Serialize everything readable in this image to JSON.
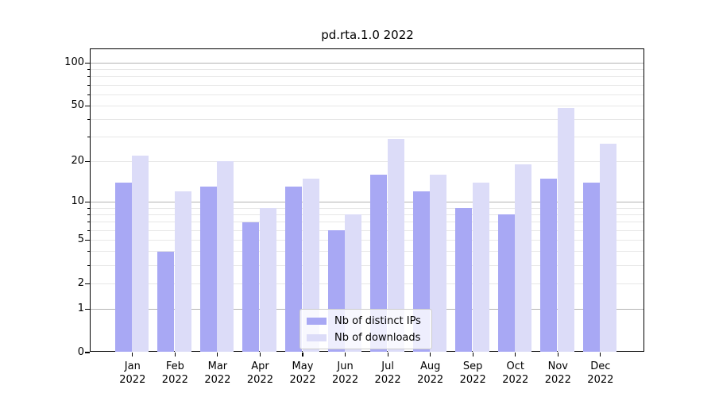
{
  "chart_data": {
    "type": "bar",
    "title": "pd.rta.1.0 2022",
    "year_label": "2022",
    "categories": [
      "Jan",
      "Feb",
      "Mar",
      "Apr",
      "May",
      "Jun",
      "Jul",
      "Aug",
      "Sep",
      "Oct",
      "Nov",
      "Dec"
    ],
    "series": [
      {
        "name": "Nb of distinct IPs",
        "color": "#a8a8f4",
        "values": [
          14,
          4,
          13,
          7,
          13,
          6,
          16,
          12,
          9,
          8,
          15,
          14
        ]
      },
      {
        "name": "Nb of downloads",
        "color": "#dcdcf8",
        "values": [
          22,
          12,
          20,
          9,
          15,
          8,
          29,
          16,
          14,
          19,
          48,
          27
        ]
      }
    ],
    "yscale": "log1p",
    "ylim": [
      0,
      125
    ],
    "yticks": [
      0,
      1,
      2,
      5,
      10,
      20,
      50,
      100
    ],
    "grid": {
      "major": [
        1,
        10,
        100
      ],
      "minor": [
        2,
        3,
        4,
        5,
        6,
        7,
        8,
        9,
        20,
        30,
        40,
        50,
        60,
        70,
        80,
        90
      ],
      "major_color": "#b3b3b3",
      "minor_color": "#e7e7e7"
    },
    "legend_position": "lower-center",
    "axis_color": "#000000",
    "background": "#ffffff"
  }
}
